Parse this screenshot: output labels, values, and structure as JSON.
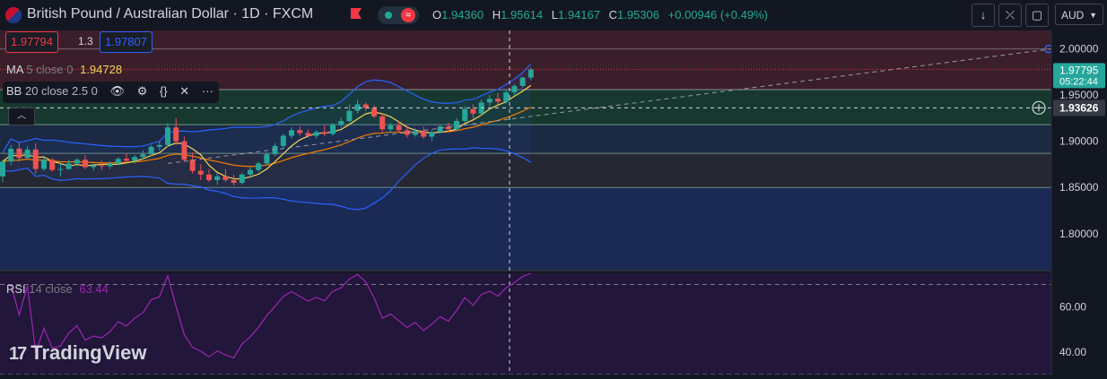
{
  "header": {
    "title": "British Pound / Australian Dollar · 1D · FXCM",
    "ohlc": {
      "o_label": "O",
      "o": "1.94360",
      "h_label": "H",
      "h": "1.95614",
      "l_label": "L",
      "l": "1.94167",
      "c_label": "C",
      "c": "1.95306",
      "change": "+0.00946 (+0.49%)"
    },
    "currency": "AUD"
  },
  "quote": {
    "bid": "1.97794",
    "spread": "1.3",
    "ask": "1.97807"
  },
  "legends": {
    "ma": {
      "name": "MA",
      "params": "5 close 0",
      "value": "1.94728"
    },
    "bb": {
      "name": "BB",
      "params": "20 close 2.5 0"
    },
    "rsi": {
      "name": "RSI",
      "params": "14 close",
      "value": "63.44"
    }
  },
  "price_axis": {
    "ticks": [
      "2.00000",
      "1.95000",
      "1.90000",
      "1.85000",
      "1.80000"
    ],
    "current_price": "1.97795",
    "countdown": "05:22:44",
    "crosshair_price": "1.93626"
  },
  "rsi_axis": {
    "ticks": [
      "60.00",
      "40.00"
    ]
  },
  "logo": "TradingView",
  "colors": {
    "up": "#26a69a",
    "down": "#ef5350",
    "ma": "#f7d358",
    "ema": "#f57c00",
    "bb": "#2962ff",
    "rsi": "#9c27b0",
    "background": "#131722"
  },
  "chart_data": {
    "type": "candlestick",
    "series": [
      {
        "name": "price",
        "values": [
          [
            1.862,
            1.88,
            1.856,
            1.878
          ],
          [
            1.878,
            1.896,
            1.874,
            1.892
          ],
          [
            1.892,
            1.899,
            1.878,
            1.882
          ],
          [
            1.882,
            1.895,
            1.88,
            1.891
          ],
          [
            1.891,
            1.898,
            1.865,
            1.87
          ],
          [
            1.87,
            1.883,
            1.868,
            1.88
          ],
          [
            1.88,
            1.882,
            1.867,
            1.869
          ],
          [
            1.869,
            1.876,
            1.862,
            1.87
          ],
          [
            1.87,
            1.88,
            1.869,
            1.876
          ],
          [
            1.876,
            1.882,
            1.873,
            1.88
          ],
          [
            1.88,
            1.885,
            1.87,
            1.872
          ],
          [
            1.872,
            1.876,
            1.868,
            1.874
          ],
          [
            1.874,
            1.879,
            1.869,
            1.873
          ],
          [
            1.873,
            1.878,
            1.87,
            1.876
          ],
          [
            1.876,
            1.883,
            1.874,
            1.881
          ],
          [
            1.881,
            1.887,
            1.877,
            1.879
          ],
          [
            1.879,
            1.885,
            1.876,
            1.883
          ],
          [
            1.883,
            1.89,
            1.88,
            1.886
          ],
          [
            1.886,
            1.896,
            1.884,
            1.894
          ],
          [
            1.894,
            1.9,
            1.89,
            1.896
          ],
          [
            1.896,
            1.92,
            1.894,
            1.915
          ],
          [
            1.915,
            1.925,
            1.896,
            1.9
          ],
          [
            1.9,
            1.905,
            1.878,
            1.88
          ],
          [
            1.88,
            1.888,
            1.865,
            1.868
          ],
          [
            1.868,
            1.875,
            1.858,
            1.864
          ],
          [
            1.864,
            1.87,
            1.856,
            1.858
          ],
          [
            1.858,
            1.866,
            1.853,
            1.862
          ],
          [
            1.862,
            1.87,
            1.856,
            1.858
          ],
          [
            1.858,
            1.864,
            1.852,
            1.855
          ],
          [
            1.855,
            1.866,
            1.853,
            1.864
          ],
          [
            1.864,
            1.872,
            1.86,
            1.869
          ],
          [
            1.869,
            1.878,
            1.867,
            1.876
          ],
          [
            1.876,
            1.888,
            1.874,
            1.886
          ],
          [
            1.886,
            1.898,
            1.884,
            1.895
          ],
          [
            1.895,
            1.908,
            1.893,
            1.906
          ],
          [
            1.906,
            1.915,
            1.903,
            1.912
          ],
          [
            1.912,
            1.916,
            1.906,
            1.909
          ],
          [
            1.909,
            1.913,
            1.904,
            1.906
          ],
          [
            1.906,
            1.912,
            1.903,
            1.91
          ],
          [
            1.91,
            1.917,
            1.906,
            1.908
          ],
          [
            1.908,
            1.92,
            1.906,
            1.918
          ],
          [
            1.918,
            1.926,
            1.915,
            1.922
          ],
          [
            1.922,
            1.94,
            1.92,
            1.933
          ],
          [
            1.933,
            1.945,
            1.93,
            1.94
          ],
          [
            1.94,
            1.942,
            1.933,
            1.936
          ],
          [
            1.936,
            1.939,
            1.925,
            1.927
          ],
          [
            1.927,
            1.93,
            1.91,
            1.913
          ],
          [
            1.913,
            1.92,
            1.909,
            1.917
          ],
          [
            1.917,
            1.922,
            1.91,
            1.912
          ],
          [
            1.912,
            1.917,
            1.904,
            1.907
          ],
          [
            1.907,
            1.914,
            1.905,
            1.911
          ],
          [
            1.911,
            1.916,
            1.903,
            1.905
          ],
          [
            1.905,
            1.912,
            1.9,
            1.91
          ],
          [
            1.91,
            1.918,
            1.908,
            1.916
          ],
          [
            1.916,
            1.92,
            1.91,
            1.913
          ],
          [
            1.913,
            1.925,
            1.911,
            1.922
          ],
          [
            1.922,
            1.938,
            1.92,
            1.935
          ],
          [
            1.935,
            1.94,
            1.925,
            1.93
          ],
          [
            1.93,
            1.945,
            1.928,
            1.942
          ],
          [
            1.942,
            1.95,
            1.938,
            1.946
          ],
          [
            1.946,
            1.952,
            1.94,
            1.943
          ],
          [
            1.943,
            1.956,
            1.941,
            1.953
          ],
          [
            1.953,
            1.962,
            1.95,
            1.96
          ],
          [
            1.96,
            1.97,
            1.958,
            1.969
          ],
          [
            1.969,
            1.98,
            1.966,
            1.9779
          ]
        ]
      }
    ],
    "ylim": [
      1.76,
      2.02
    ],
    "rsi_ylim": [
      30,
      75
    ],
    "rsi_levels": [
      70,
      30
    ],
    "horizontal_levels": [
      1.956,
      1.918,
      1.887,
      1.85
    ]
  }
}
